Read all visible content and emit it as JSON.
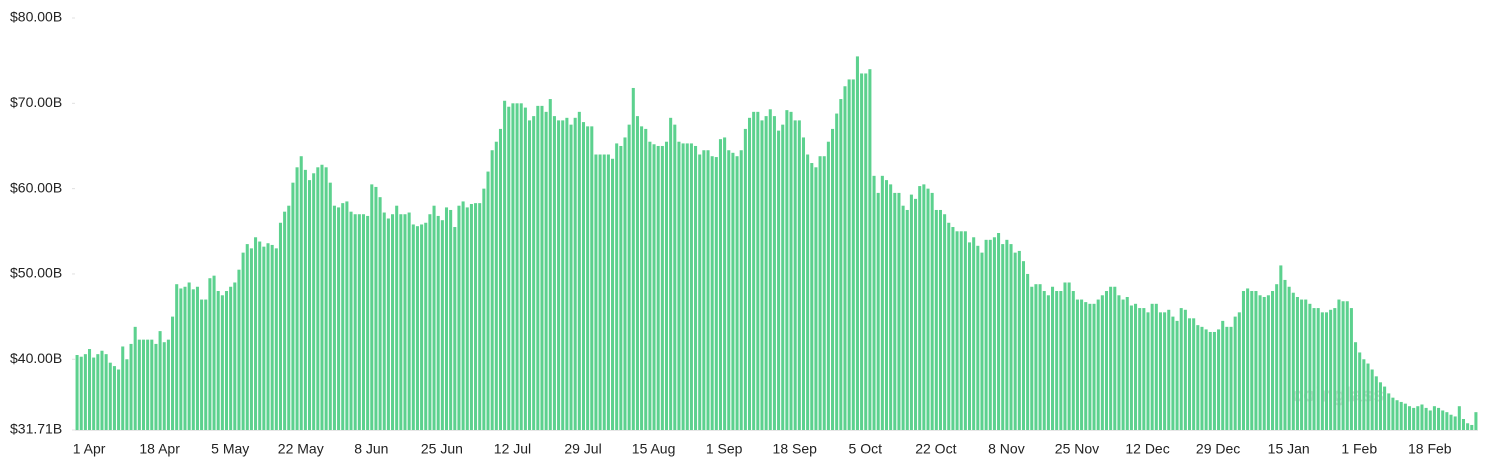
{
  "chart_data": {
    "type": "bar",
    "color": "#5cd18e",
    "watermark": "coinglass",
    "ylim": [
      31.71,
      80
    ],
    "yticks": [
      {
        "value": 31.71,
        "label": "$31.71B"
      },
      {
        "value": 40,
        "label": "$40.00B"
      },
      {
        "value": 50,
        "label": "$50.00B"
      },
      {
        "value": 60,
        "label": "$60.00B"
      },
      {
        "value": 70,
        "label": "$70.00B"
      },
      {
        "value": 80,
        "label": "$80.00B"
      }
    ],
    "categories": [
      "1 Apr",
      null,
      null,
      null,
      null,
      null,
      null,
      null,
      null,
      null,
      null,
      null,
      null,
      null,
      null,
      null,
      null,
      "18 Apr",
      null,
      null,
      null,
      null,
      null,
      null,
      null,
      null,
      null,
      null,
      null,
      null,
      null,
      null,
      null,
      null,
      "5 May",
      null,
      null,
      null,
      null,
      null,
      null,
      null,
      null,
      null,
      null,
      null,
      null,
      null,
      null,
      null,
      null,
      "22 May",
      null,
      null,
      null,
      null,
      null,
      null,
      null,
      null,
      null,
      null,
      null,
      null,
      null,
      null,
      null,
      null,
      "8 Jun",
      null,
      null,
      null,
      null,
      null,
      null,
      null,
      null,
      null,
      null,
      null,
      null,
      null,
      null,
      null,
      null,
      "25 Jun",
      null,
      null,
      null,
      null,
      null,
      null,
      null,
      null,
      null,
      null,
      null,
      null,
      null,
      null,
      null,
      null,
      "12 Jul",
      null,
      null,
      null,
      null,
      null,
      null,
      null,
      null,
      null,
      null,
      null,
      null,
      null,
      null,
      null,
      null,
      "29 Jul",
      null,
      null,
      null,
      null,
      null,
      null,
      null,
      null,
      null,
      null,
      null,
      null,
      null,
      null,
      null,
      null,
      "15 Aug",
      null,
      null,
      null,
      null,
      null,
      null,
      null,
      null,
      null,
      null,
      null,
      null,
      null,
      null,
      null,
      null,
      "1 Sep",
      null,
      null,
      null,
      null,
      null,
      null,
      null,
      null,
      null,
      null,
      null,
      null,
      null,
      null,
      null,
      null,
      "18 Sep",
      null,
      null,
      null,
      null,
      null,
      null,
      null,
      null,
      null,
      null,
      null,
      null,
      null,
      null,
      null,
      null,
      "5 Oct",
      null,
      null,
      null,
      null,
      null,
      null,
      null,
      null,
      null,
      null,
      null,
      null,
      null,
      null,
      null,
      null,
      "22 Oct",
      null,
      null,
      null,
      null,
      null,
      null,
      null,
      null,
      null,
      null,
      null,
      null,
      null,
      null,
      null,
      null,
      "8 Nov",
      null,
      null,
      null,
      null,
      null,
      null,
      null,
      null,
      null,
      null,
      null,
      null,
      null,
      null,
      null,
      null,
      "25 Nov",
      null,
      null,
      null,
      null,
      null,
      null,
      null,
      null,
      null,
      null,
      null,
      null,
      null,
      null,
      null,
      null,
      "12 Dec",
      null,
      null,
      null,
      null,
      null,
      null,
      null,
      null,
      null,
      null,
      null,
      null,
      null,
      null,
      null,
      null,
      "29 Dec",
      null,
      null,
      null,
      null,
      null,
      null,
      null,
      null,
      null,
      null,
      null,
      null,
      null,
      null,
      null,
      null,
      "15 Jan",
      null,
      null,
      null,
      null,
      null,
      null,
      null,
      null,
      null,
      null,
      null,
      null,
      null,
      null,
      null,
      null,
      "1 Feb",
      null,
      null,
      null,
      null,
      null,
      null,
      null,
      null,
      null,
      null,
      null,
      null,
      null,
      null,
      null,
      null,
      "18 Feb",
      null,
      null,
      null,
      null,
      null,
      null,
      null,
      null,
      null,
      null,
      null,
      null,
      null,
      null
    ],
    "values": [
      40.5,
      40.3,
      40.6,
      41.2,
      40.2,
      40.6,
      41.0,
      40.6,
      39.6,
      39.2,
      38.8,
      41.5,
      40.0,
      41.8,
      43.8,
      42.3,
      42.3,
      42.3,
      42.3,
      41.8,
      43.3,
      42.0,
      42.3,
      45.0,
      48.8,
      48.3,
      48.5,
      49.0,
      48.2,
      48.5,
      47.0,
      47.0,
      49.5,
      49.8,
      48.0,
      47.5,
      48.0,
      48.5,
      49.0,
      50.5,
      52.5,
      53.5,
      53.0,
      54.3,
      53.8,
      53.2,
      53.6,
      53.4,
      53.0,
      56.0,
      57.3,
      58.0,
      60.7,
      62.5,
      63.8,
      62.2,
      61.0,
      61.8,
      62.5,
      62.8,
      62.5,
      60.7,
      58.0,
      57.8,
      58.3,
      58.5,
      57.3,
      57.0,
      57.0,
      57.0,
      56.8,
      60.5,
      60.2,
      59.0,
      57.2,
      56.5,
      57.0,
      58.0,
      57.0,
      57.0,
      57.2,
      55.8,
      55.6,
      55.8,
      56.0,
      57.0,
      58.0,
      56.8,
      56.3,
      57.8,
      57.5,
      55.5,
      58.0,
      58.5,
      57.8,
      58.2,
      58.3,
      58.3,
      60.0,
      62.0,
      64.5,
      65.5,
      67.0,
      70.3,
      69.6,
      70.0,
      70.0,
      70.0,
      69.5,
      68.0,
      68.5,
      69.7,
      69.7,
      69.0,
      70.5,
      68.5,
      68.0,
      68.0,
      68.3,
      67.5,
      68.3,
      69.0,
      67.8,
      67.3,
      67.3,
      64.0,
      64.0,
      64.0,
      64.0,
      63.5,
      65.3,
      65.0,
      66.0,
      67.5,
      71.8,
      68.5,
      67.3,
      67.0,
      65.5,
      65.2,
      65.0,
      65.0,
      65.5,
      68.3,
      67.5,
      65.5,
      65.3,
      65.3,
      65.3,
      65.0,
      64.0,
      64.5,
      64.5,
      63.8,
      63.7,
      65.8,
      66.0,
      64.5,
      64.2,
      63.8,
      64.5,
      67.0,
      68.3,
      69.0,
      69.0,
      68.0,
      68.5,
      69.3,
      68.5,
      66.8,
      67.5,
      69.2,
      69.0,
      68.0,
      68.0,
      66.0,
      64.0,
      63.0,
      62.5,
      63.8,
      63.8,
      65.5,
      67.0,
      68.8,
      70.5,
      72.0,
      72.8,
      72.8,
      75.5,
      73.5,
      73.5,
      74.0,
      61.5,
      59.5,
      61.5,
      61.0,
      60.5,
      59.5,
      59.5,
      58.0,
      57.5,
      59.3,
      58.8,
      60.3,
      60.5,
      60.0,
      59.5,
      57.5,
      57.5,
      57.0,
      56.0,
      55.5,
      55.0,
      55.0,
      55.0,
      53.7,
      54.3,
      53.3,
      52.5,
      54.0,
      54.0,
      54.3,
      54.8,
      53.5,
      54.0,
      53.5,
      52.5,
      52.7,
      51.5,
      50.0,
      48.5,
      48.8,
      48.8,
      48.0,
      47.5,
      48.5,
      48.0,
      48.0,
      49.0,
      49.0,
      48.0,
      47.0,
      47.0,
      46.7,
      46.5,
      46.5,
      47.0,
      47.5,
      48.0,
      48.5,
      48.5,
      47.5,
      47.0,
      47.3,
      46.3,
      46.5,
      46.0,
      46.0,
      45.5,
      46.5,
      46.5,
      45.5,
      45.5,
      45.8,
      45.0,
      44.5,
      46.0,
      45.8,
      44.8,
      44.8,
      44.0,
      43.8,
      43.5,
      43.2,
      43.2,
      43.5,
      44.5,
      43.8,
      43.8,
      45.0,
      45.5,
      48.0,
      48.3,
      48.0,
      48.0,
      47.5,
      47.3,
      47.5,
      48.0,
      48.8,
      51.0,
      49.3,
      48.5,
      47.8,
      47.3,
      47.0,
      47.0,
      46.5,
      46.0,
      46.0,
      45.5,
      45.5,
      45.8,
      46.0,
      47.0,
      46.8,
      46.8,
      46.0,
      42.0,
      40.8,
      40.0,
      39.5,
      38.8,
      38.0,
      37.3,
      36.8,
      36.0,
      35.5,
      35.2,
      35.0,
      34.8,
      34.5,
      34.3,
      34.5,
      34.7,
      34.3,
      34.0,
      34.5,
      34.3,
      34.0,
      33.8,
      33.5,
      33.3,
      34.5,
      33.0,
      32.5,
      32.3,
      33.8
    ]
  }
}
